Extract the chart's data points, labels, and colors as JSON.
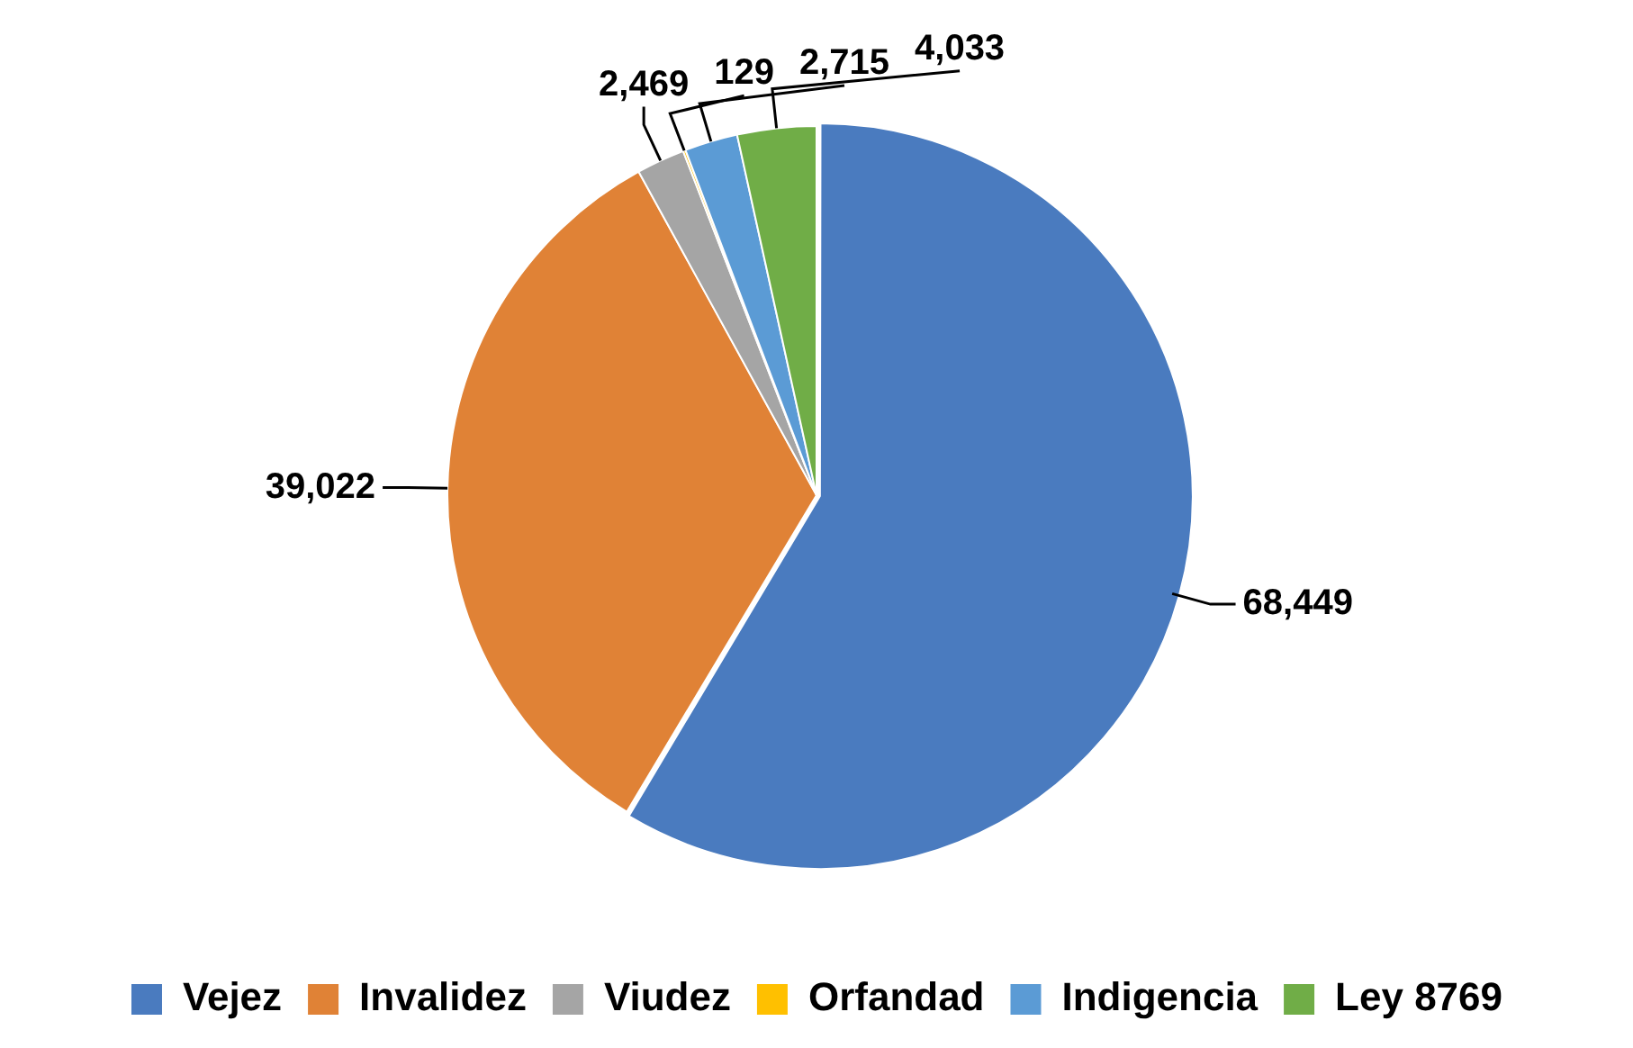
{
  "chart_data": {
    "type": "pie",
    "categories": [
      "Vejez",
      "Invalidez",
      "Viudez",
      "Orfandad",
      "Indigencia",
      "Ley 8769"
    ],
    "values": [
      68449,
      39022,
      2469,
      129,
      2715,
      4033
    ],
    "colors": [
      "#4a7bbf",
      "#e08236",
      "#a5a5a5",
      "#ffc000",
      "#5b9bd5",
      "#70ad47"
    ],
    "value_labels": [
      "68,449",
      "39,022",
      "2,469",
      "129",
      "2,715",
      "4,033"
    ],
    "legend": "bottom"
  }
}
